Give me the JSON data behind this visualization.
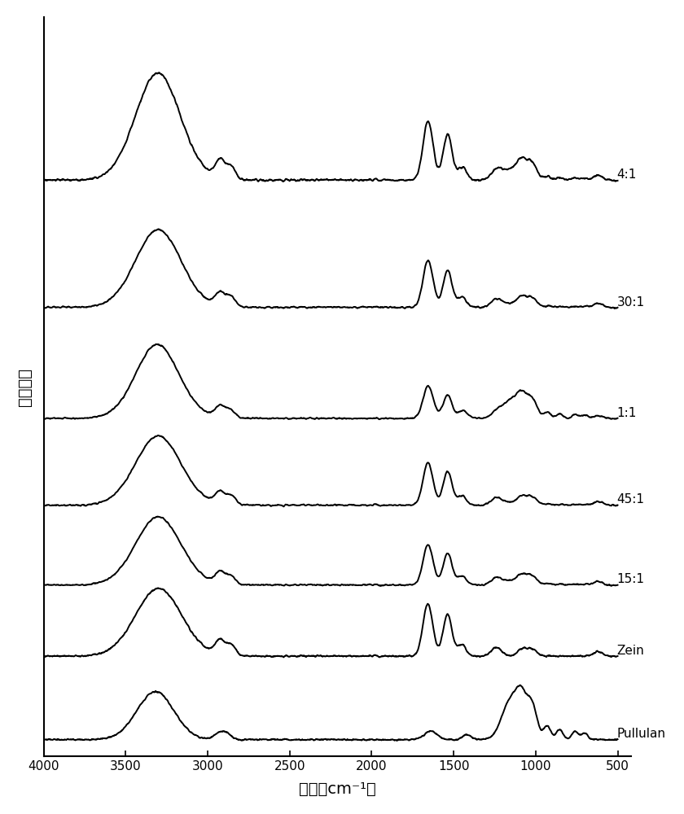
{
  "xmin": 500,
  "xmax": 4000,
  "xlabel": "波数（cm⁻¹）",
  "ylabel": "吸收强度",
  "labels": [
    "Pullulan",
    "Zein",
    "15:1",
    "45:1",
    "1:1",
    "30:1",
    "4:1"
  ],
  "offsets": [
    0.0,
    0.42,
    0.78,
    1.18,
    1.62,
    2.18,
    2.82
  ],
  "figsize": [
    8.4,
    10.0
  ],
  "dpi": 100,
  "linewidth": 1.4,
  "linecolor": "black",
  "background": "white",
  "axis_fontsize": 14,
  "label_fontsize": 11,
  "tick_fontsize": 11
}
